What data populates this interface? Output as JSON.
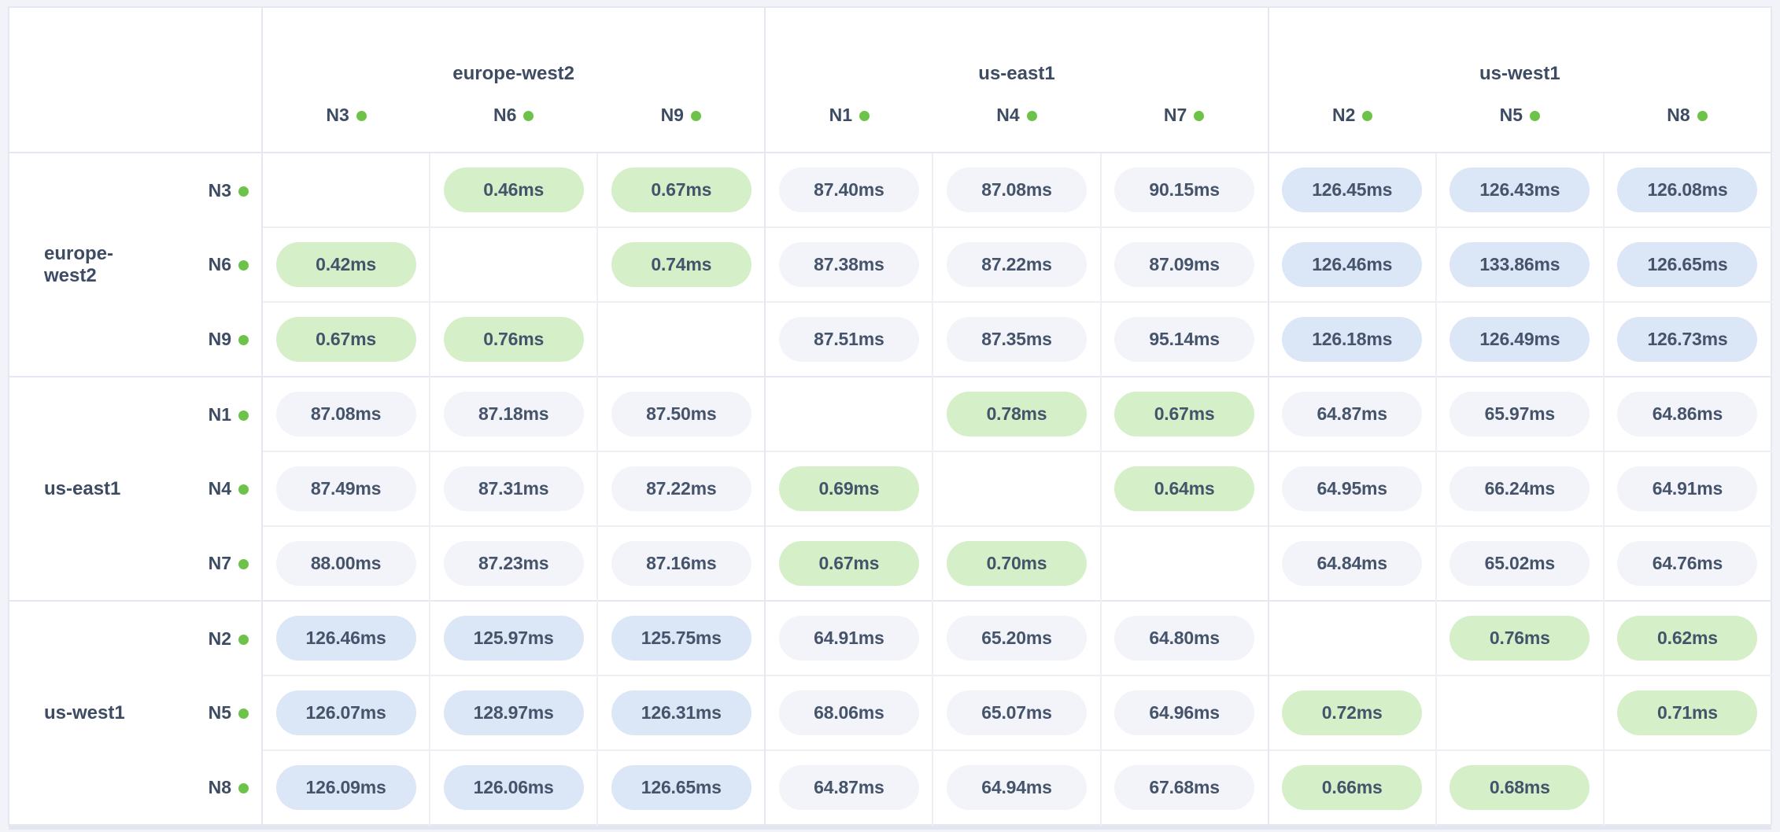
{
  "matrix": {
    "unit": "ms",
    "column_groups": [
      {
        "region": "europe-west2",
        "nodes": [
          "N3",
          "N6",
          "N9"
        ]
      },
      {
        "region": "us-east1",
        "nodes": [
          "N1",
          "N4",
          "N7"
        ]
      },
      {
        "region": "us-west1",
        "nodes": [
          "N2",
          "N5",
          "N8"
        ]
      }
    ],
    "row_groups": [
      {
        "region": "europe-west2",
        "rows": [
          {
            "node": "N3",
            "cells": [
              {
                "text": "",
                "tone": "empty"
              },
              {
                "text": "0.46ms",
                "tone": "green"
              },
              {
                "text": "0.67ms",
                "tone": "green"
              },
              {
                "text": "87.40ms",
                "tone": "gray"
              },
              {
                "text": "87.08ms",
                "tone": "gray"
              },
              {
                "text": "90.15ms",
                "tone": "gray"
              },
              {
                "text": "126.45ms",
                "tone": "blue"
              },
              {
                "text": "126.43ms",
                "tone": "blue"
              },
              {
                "text": "126.08ms",
                "tone": "blue"
              }
            ]
          },
          {
            "node": "N6",
            "cells": [
              {
                "text": "0.42ms",
                "tone": "green"
              },
              {
                "text": "",
                "tone": "empty"
              },
              {
                "text": "0.74ms",
                "tone": "green"
              },
              {
                "text": "87.38ms",
                "tone": "gray"
              },
              {
                "text": "87.22ms",
                "tone": "gray"
              },
              {
                "text": "87.09ms",
                "tone": "gray"
              },
              {
                "text": "126.46ms",
                "tone": "blue"
              },
              {
                "text": "133.86ms",
                "tone": "blue"
              },
              {
                "text": "126.65ms",
                "tone": "blue"
              }
            ]
          },
          {
            "node": "N9",
            "cells": [
              {
                "text": "0.67ms",
                "tone": "green"
              },
              {
                "text": "0.76ms",
                "tone": "green"
              },
              {
                "text": "",
                "tone": "empty"
              },
              {
                "text": "87.51ms",
                "tone": "gray"
              },
              {
                "text": "87.35ms",
                "tone": "gray"
              },
              {
                "text": "95.14ms",
                "tone": "gray"
              },
              {
                "text": "126.18ms",
                "tone": "blue"
              },
              {
                "text": "126.49ms",
                "tone": "blue"
              },
              {
                "text": "126.73ms",
                "tone": "blue"
              }
            ]
          }
        ]
      },
      {
        "region": "us-east1",
        "rows": [
          {
            "node": "N1",
            "cells": [
              {
                "text": "87.08ms",
                "tone": "gray"
              },
              {
                "text": "87.18ms",
                "tone": "gray"
              },
              {
                "text": "87.50ms",
                "tone": "gray"
              },
              {
                "text": "",
                "tone": "empty"
              },
              {
                "text": "0.78ms",
                "tone": "green"
              },
              {
                "text": "0.67ms",
                "tone": "green"
              },
              {
                "text": "64.87ms",
                "tone": "gray"
              },
              {
                "text": "65.97ms",
                "tone": "gray"
              },
              {
                "text": "64.86ms",
                "tone": "gray"
              }
            ]
          },
          {
            "node": "N4",
            "cells": [
              {
                "text": "87.49ms",
                "tone": "gray"
              },
              {
                "text": "87.31ms",
                "tone": "gray"
              },
              {
                "text": "87.22ms",
                "tone": "gray"
              },
              {
                "text": "0.69ms",
                "tone": "green"
              },
              {
                "text": "",
                "tone": "empty"
              },
              {
                "text": "0.64ms",
                "tone": "green"
              },
              {
                "text": "64.95ms",
                "tone": "gray"
              },
              {
                "text": "66.24ms",
                "tone": "gray"
              },
              {
                "text": "64.91ms",
                "tone": "gray"
              }
            ]
          },
          {
            "node": "N7",
            "cells": [
              {
                "text": "88.00ms",
                "tone": "gray"
              },
              {
                "text": "87.23ms",
                "tone": "gray"
              },
              {
                "text": "87.16ms",
                "tone": "gray"
              },
              {
                "text": "0.67ms",
                "tone": "green"
              },
              {
                "text": "0.70ms",
                "tone": "green"
              },
              {
                "text": "",
                "tone": "empty"
              },
              {
                "text": "64.84ms",
                "tone": "gray"
              },
              {
                "text": "65.02ms",
                "tone": "gray"
              },
              {
                "text": "64.76ms",
                "tone": "gray"
              }
            ]
          }
        ]
      },
      {
        "region": "us-west1",
        "rows": [
          {
            "node": "N2",
            "cells": [
              {
                "text": "126.46ms",
                "tone": "blue"
              },
              {
                "text": "125.97ms",
                "tone": "blue"
              },
              {
                "text": "125.75ms",
                "tone": "blue"
              },
              {
                "text": "64.91ms",
                "tone": "gray"
              },
              {
                "text": "65.20ms",
                "tone": "gray"
              },
              {
                "text": "64.80ms",
                "tone": "gray"
              },
              {
                "text": "",
                "tone": "empty"
              },
              {
                "text": "0.76ms",
                "tone": "green"
              },
              {
                "text": "0.62ms",
                "tone": "green"
              }
            ]
          },
          {
            "node": "N5",
            "cells": [
              {
                "text": "126.07ms",
                "tone": "blue"
              },
              {
                "text": "128.97ms",
                "tone": "blue"
              },
              {
                "text": "126.31ms",
                "tone": "blue"
              },
              {
                "text": "68.06ms",
                "tone": "gray"
              },
              {
                "text": "65.07ms",
                "tone": "gray"
              },
              {
                "text": "64.96ms",
                "tone": "gray"
              },
              {
                "text": "0.72ms",
                "tone": "green"
              },
              {
                "text": "",
                "tone": "empty"
              },
              {
                "text": "0.71ms",
                "tone": "green"
              }
            ]
          },
          {
            "node": "N8",
            "cells": [
              {
                "text": "126.09ms",
                "tone": "blue"
              },
              {
                "text": "126.06ms",
                "tone": "blue"
              },
              {
                "text": "126.65ms",
                "tone": "blue"
              },
              {
                "text": "64.87ms",
                "tone": "gray"
              },
              {
                "text": "64.94ms",
                "tone": "gray"
              },
              {
                "text": "67.68ms",
                "tone": "gray"
              },
              {
                "text": "0.66ms",
                "tone": "green"
              },
              {
                "text": "0.68ms",
                "tone": "green"
              },
              {
                "text": "",
                "tone": "empty"
              }
            ]
          }
        ]
      }
    ]
  },
  "icons": {
    "node_status_dot": "filled-circle"
  },
  "colors": {
    "pill_green_bg": "#d5f0c8",
    "pill_gray_bg": "#f2f4f9",
    "pill_blue_bg": "#dbe6f6",
    "status_dot": "#6dc349",
    "value_text": "#45536b",
    "label_text": "#3e4c63",
    "table_bg": "#ffffff",
    "page_bg": "#f2f3f8",
    "border_strong": "#e5e8f0",
    "border_light": "#edeff5"
  }
}
